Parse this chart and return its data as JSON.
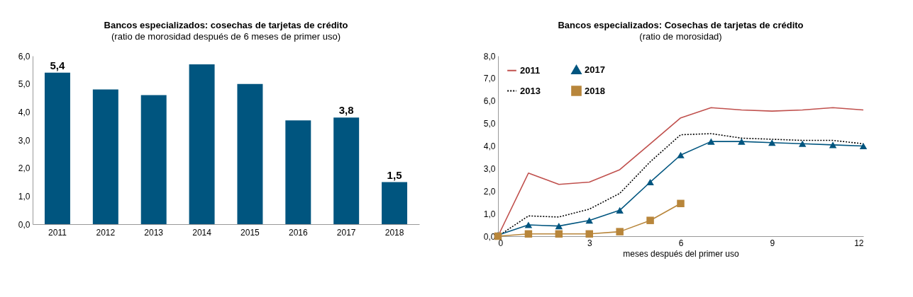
{
  "chart_data": [
    {
      "type": "bar",
      "title": "Bancos especializados: cosechas de tarjetas de crédito",
      "subtitle": "(ratio de morosidad después de 6 meses de primer uso)",
      "categories": [
        "2011",
        "2012",
        "2013",
        "2014",
        "2015",
        "2016",
        "2017",
        "2018"
      ],
      "values": [
        5.4,
        4.8,
        4.6,
        5.7,
        5.0,
        3.7,
        3.8,
        1.5
      ],
      "value_labels": [
        "5,4",
        null,
        null,
        null,
        null,
        null,
        "3,8",
        "1,5"
      ],
      "color": "#00557f",
      "ylim": [
        0,
        6
      ],
      "yticks": [
        {
          "value": 0,
          "label": "0,0"
        },
        {
          "value": 1,
          "label": "1,0"
        },
        {
          "value": 2,
          "label": "2,0"
        },
        {
          "value": 3,
          "label": "3,0"
        },
        {
          "value": 4,
          "label": "4,0"
        },
        {
          "value": 5,
          "label": "5,0"
        },
        {
          "value": 6,
          "label": "6,0"
        }
      ],
      "grid": false
    },
    {
      "type": "line",
      "title": "Bancos especializados: Cosechas de tarjetas de crédito",
      "subtitle": "(ratio de morosidad)",
      "xlabel": "meses después del primer uso",
      "x": [
        0,
        1,
        2,
        3,
        4,
        5,
        6,
        7,
        8,
        9,
        10,
        11,
        12
      ],
      "xlim": [
        0,
        12
      ],
      "xticks": [
        0,
        3,
        6,
        9,
        12
      ],
      "ylim": [
        0,
        8
      ],
      "yticks": [
        {
          "value": 0,
          "label": "0,0"
        },
        {
          "value": 1,
          "label": "1,0"
        },
        {
          "value": 2,
          "label": "2,0"
        },
        {
          "value": 3,
          "label": "3,0"
        },
        {
          "value": 4,
          "label": "4,0"
        },
        {
          "value": 5,
          "label": "5,0"
        },
        {
          "value": 6,
          "label": "6,0"
        },
        {
          "value": 7,
          "label": "7,0"
        },
        {
          "value": 8,
          "label": "8,0"
        }
      ],
      "grid": false,
      "legend": "top left",
      "series": [
        {
          "name": "2011",
          "color": "#c0504d",
          "line_style": "solid",
          "marker": "none",
          "values": [
            0,
            2.8,
            2.3,
            2.4,
            2.95,
            4.1,
            5.25,
            5.7,
            5.6,
            5.55,
            5.6,
            5.7,
            5.6
          ]
        },
        {
          "name": "2013",
          "color": "#000000",
          "line_style": "dotted",
          "marker": "none",
          "values": [
            0,
            0.9,
            0.85,
            1.2,
            1.9,
            3.3,
            4.5,
            4.55,
            4.35,
            4.3,
            4.25,
            4.25,
            4.1
          ]
        },
        {
          "name": "2017",
          "color": "#00557f",
          "line_style": "solid",
          "marker": "triangle",
          "values": [
            0.05,
            0.5,
            0.45,
            0.7,
            1.15,
            2.4,
            3.6,
            4.2,
            4.2,
            4.15,
            4.1,
            4.05,
            4.0
          ]
        },
        {
          "name": "2018",
          "color": "#b8863b",
          "line_style": "solid",
          "marker": "square",
          "values": [
            0,
            0.1,
            0.1,
            0.1,
            0.2,
            0.7,
            1.45,
            null,
            null,
            null,
            null,
            null,
            null
          ]
        }
      ]
    }
  ]
}
